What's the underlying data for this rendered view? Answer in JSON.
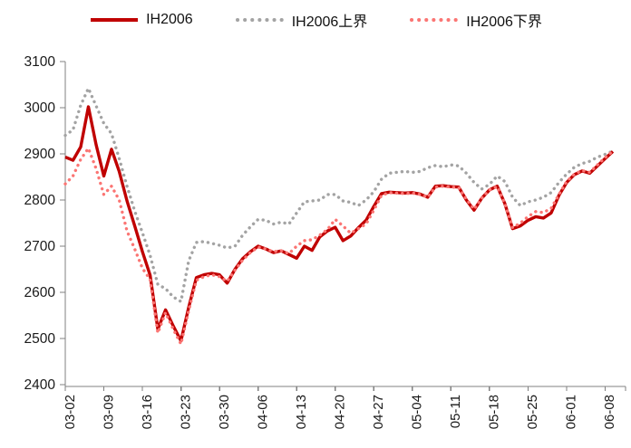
{
  "legend": {
    "items": [
      {
        "label": "IH2006",
        "style": "solid",
        "color": "#C00000"
      },
      {
        "label": "IH2006上界",
        "style": "dotted",
        "color": "#A3A3A3"
      },
      {
        "label": "IH2006下界",
        "style": "dotted",
        "color": "#FB7573"
      }
    ]
  },
  "chart_data": {
    "type": "line",
    "title": "",
    "xlabel": "",
    "ylabel": "",
    "ylim": [
      2400,
      3100
    ],
    "y_tick_step": 100,
    "y_tick_labels": [
      "2400",
      "2500",
      "2600",
      "2700",
      "2800",
      "2900",
      "3000",
      "3100"
    ],
    "n_points": 72,
    "x_tick_every": 5,
    "x_tick_labels": [
      "03-02",
      "03-09",
      "03-16",
      "03-23",
      "03-30",
      "04-06",
      "04-13",
      "04-20",
      "04-27",
      "05-04",
      "05-11",
      "05-18",
      "05-25",
      "06-01",
      "06-08"
    ],
    "x_labels_rotation": -90,
    "grid": false,
    "legend_position": "top",
    "axis_color": "#808080",
    "text_color": "#1a1a1a",
    "series": [
      {
        "name": "IH2006",
        "color": "#C00000",
        "line_style": "solid",
        "line_width": 3.4,
        "values": [
          2893,
          2886,
          2915,
          3002,
          2920,
          2852,
          2910,
          2862,
          2798,
          2744,
          2688,
          2637,
          2520,
          2562,
          2527,
          2495,
          2567,
          2632,
          2638,
          2641,
          2638,
          2620,
          2650,
          2673,
          2688,
          2700,
          2694,
          2686,
          2690,
          2682,
          2674,
          2700,
          2691,
          2720,
          2733,
          2741,
          2712,
          2722,
          2740,
          2756,
          2786,
          2814,
          2817,
          2816,
          2815,
          2816,
          2813,
          2806,
          2830,
          2831,
          2829,
          2828,
          2800,
          2778,
          2804,
          2822,
          2830,
          2792,
          2738,
          2744,
          2756,
          2764,
          2761,
          2772,
          2810,
          2838,
          2855,
          2863,
          2858,
          2874,
          2890,
          2905
        ]
      },
      {
        "name": "IH2006上界",
        "color": "#A3A3A3",
        "line_style": "dotted",
        "line_width": 3.4,
        "values": [
          2940,
          2952,
          3005,
          3042,
          3004,
          2966,
          2944,
          2890,
          2830,
          2776,
          2729,
          2680,
          2617,
          2608,
          2590,
          2580,
          2668,
          2708,
          2710,
          2706,
          2702,
          2696,
          2700,
          2724,
          2742,
          2758,
          2756,
          2748,
          2752,
          2748,
          2772,
          2796,
          2798,
          2800,
          2812,
          2812,
          2798,
          2795,
          2788,
          2800,
          2818,
          2845,
          2858,
          2860,
          2862,
          2860,
          2862,
          2870,
          2875,
          2872,
          2876,
          2874,
          2858,
          2838,
          2824,
          2834,
          2852,
          2840,
          2806,
          2788,
          2796,
          2800,
          2806,
          2816,
          2838,
          2856,
          2871,
          2879,
          2884,
          2893,
          2899,
          2906
        ]
      },
      {
        "name": "IH2006下界",
        "color": "#FB7573",
        "line_style": "dotted",
        "line_width": 3.4,
        "values": [
          2835,
          2852,
          2888,
          2912,
          2868,
          2812,
          2830,
          2800,
          2733,
          2694,
          2652,
          2628,
          2512,
          2556,
          2520,
          2488,
          2560,
          2626,
          2634,
          2638,
          2634,
          2624,
          2648,
          2670,
          2686,
          2698,
          2694,
          2688,
          2690,
          2684,
          2700,
          2712,
          2714,
          2724,
          2736,
          2758,
          2744,
          2728,
          2738,
          2748,
          2778,
          2810,
          2816,
          2815,
          2814,
          2815,
          2812,
          2806,
          2828,
          2830,
          2828,
          2827,
          2802,
          2780,
          2804,
          2822,
          2829,
          2792,
          2740,
          2750,
          2764,
          2775,
          2773,
          2782,
          2812,
          2840,
          2856,
          2864,
          2860,
          2876,
          2892,
          2906
        ]
      }
    ]
  }
}
